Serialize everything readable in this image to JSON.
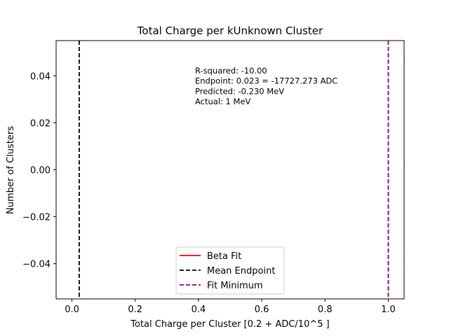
{
  "chart_data": {
    "type": "line",
    "title": "Total Charge per kUnknown Cluster",
    "xlabel": "Total Charge per Cluster [0.2 + ADC/10^5 ]",
    "ylabel": "Number of Clusters",
    "xlim": [
      -0.05,
      1.05
    ],
    "ylim": [
      -0.055,
      0.055
    ],
    "xticks": [
      0.0,
      0.2,
      0.4,
      0.6,
      0.8,
      1.0
    ],
    "xtick_labels": [
      "0.0",
      "0.2",
      "0.4",
      "0.6",
      "0.8",
      "1.0"
    ],
    "yticks": [
      0.04,
      0.02,
      0.0,
      -0.02,
      -0.04
    ],
    "ytick_labels": [
      "0.04",
      "0.02",
      "0.00",
      "−0.02",
      "−0.04"
    ],
    "grid": false,
    "legend_position": "lower-center",
    "series": [
      {
        "name": "Beta Fit",
        "style": "solid",
        "color": "#ff0000",
        "x": [],
        "y": []
      },
      {
        "name": "Mean Endpoint",
        "style": "dashed",
        "color": "#000000",
        "vline_x": 0.023
      },
      {
        "name": "Fit Minimum",
        "style": "dashed",
        "color": "#800080",
        "vline_x": 1.0
      }
    ],
    "annotations": [
      "R-squared: -10.00",
      "Endpoint: 0.023 = -17727.273 ADC",
      "Predicted: -0.230 MeV",
      "Actual: 1 MeV"
    ]
  }
}
